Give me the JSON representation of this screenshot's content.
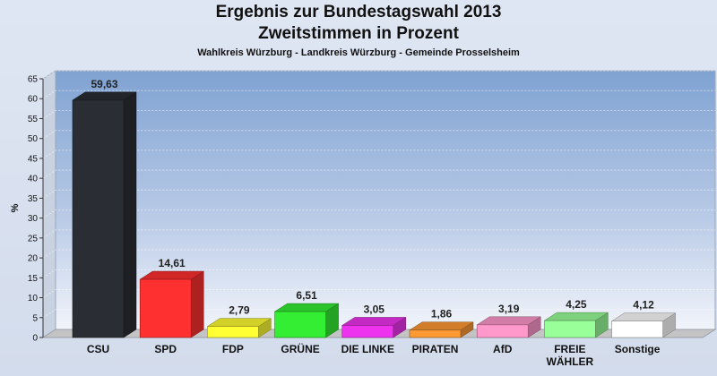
{
  "header": {
    "title": "Ergebnis zur Bundestagswahl 2013",
    "subtitle": "Zweitstimmen in Prozent",
    "caption": "Wahlkreis Würzburg - Landkreis Würzburg - Gemeinde Prosselsheim"
  },
  "chart_data": {
    "type": "bar",
    "title": "Ergebnis zur Bundestagswahl 2013",
    "subtitle": "Zweitstimmen in Prozent",
    "xlabel": "",
    "ylabel": "%",
    "ylim": [
      0,
      65
    ],
    "yticks": [
      0,
      5,
      10,
      15,
      20,
      25,
      30,
      35,
      40,
      45,
      50,
      55,
      60,
      65
    ],
    "grid": true,
    "legend": "none",
    "categories": [
      "CSU",
      "SPD",
      "FDP",
      "GRÜNE",
      "DIE LINKE",
      "PIRATEN",
      "AfD",
      "FREIE WÄHLER",
      "Sonstige"
    ],
    "category_lines": [
      [
        "CSU"
      ],
      [
        "SPD"
      ],
      [
        "FDP"
      ],
      [
        "GRÜNE"
      ],
      [
        "DIE LINKE"
      ],
      [
        "PIRATEN"
      ],
      [
        "AfD"
      ],
      [
        "FREIE",
        "WÄHLER"
      ],
      [
        "Sonstige"
      ]
    ],
    "values": [
      59.63,
      14.61,
      2.79,
      6.51,
      3.05,
      1.86,
      3.19,
      4.25,
      4.12
    ],
    "value_labels": [
      "59,63",
      "14,61",
      "2,79",
      "6,51",
      "3,05",
      "1,86",
      "3,19",
      "4,25",
      "4,12"
    ],
    "colors": [
      "#2a2d33",
      "#ff3030",
      "#ffff33",
      "#33ee33",
      "#ee33ee",
      "#ff9933",
      "#ff99cc",
      "#99ff99",
      "#ffffff"
    ]
  }
}
